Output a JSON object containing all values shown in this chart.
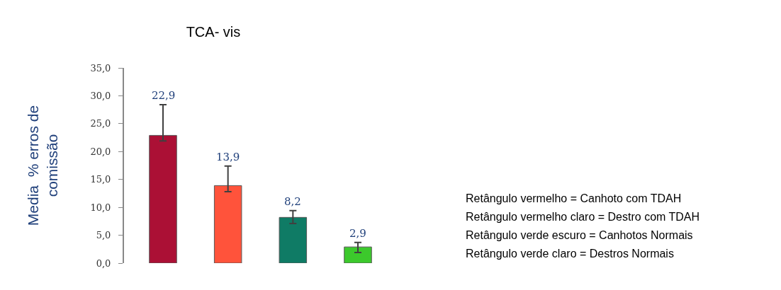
{
  "chart_data": {
    "type": "bar",
    "title": "TCA- vis",
    "ylabel": "Media  % erros de\ncomissão",
    "categories": [
      null,
      null,
      null,
      null
    ],
    "values": [
      22.9,
      13.9,
      8.2,
      2.9
    ],
    "colors": [
      "#ab1035",
      "#ff533b",
      "#0f7b65",
      "#3cc92c"
    ],
    "errors": [
      [
        21.9,
        28.4
      ],
      [
        12.8,
        17.4
      ],
      [
        7.1,
        9.4
      ],
      [
        1.9,
        3.7
      ]
    ],
    "value_labels": [
      "22,9",
      "13,9",
      "8,2",
      "2,9"
    ],
    "ylim": [
      0,
      35
    ],
    "yticks": [
      {
        "value": 0,
        "label": "0,0"
      },
      {
        "value": 5,
        "label": "5,0"
      },
      {
        "value": 10,
        "label": "10,0"
      },
      {
        "value": 15,
        "label": "15,0"
      },
      {
        "value": 20,
        "label": "20,0"
      },
      {
        "value": 25,
        "label": "25,0"
      },
      {
        "value": 30,
        "label": "30,0"
      },
      {
        "value": 35,
        "label": "35,0"
      }
    ],
    "grid": false,
    "tick_labels": "y",
    "annotations": [
      "Retângulo vermelho = Canhoto com TDAH",
      "Retângulo vermelho claro = Destro com TDAH",
      "Retângulo verde escuro = Canhotos Normais",
      "Retângulo verde claro = Destros Normais"
    ]
  }
}
